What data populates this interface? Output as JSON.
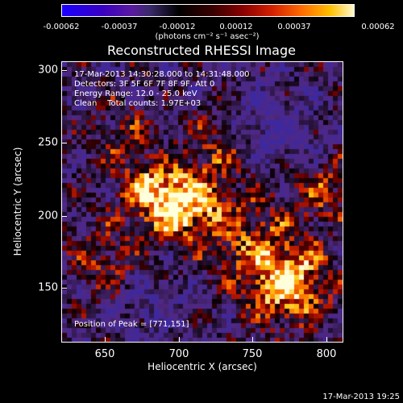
{
  "colorbar": {
    "labels": [
      "-0.00062",
      "-0.00037",
      "-0.00012",
      "0.00012",
      "0.00037",
      "0.00062"
    ],
    "unit": "(photons cm⁻² s⁻¹ asec⁻²)"
  },
  "title": "Reconstructed RHESSI Image",
  "overlay": {
    "time_range": "17-Mar-2013 14:30:28.000 to 14:31:48.000",
    "detectors": "Detectors: 3F 5F 6F 7F 8F 9F, Att 0",
    "energy": "Energy Range: 12.0 - 25.0 keV",
    "clean": "Clean    Total counts: 1.97E+03",
    "peak": "Position of Peak = [771,151]"
  },
  "axes": {
    "xlabel": "Heliocentric X (arcsec)",
    "ylabel": "Heliocentric Y (arcsec)",
    "xticks": [
      "650",
      "700",
      "750",
      "800"
    ],
    "yticks": [
      "150",
      "200",
      "250",
      "300"
    ]
  },
  "footer": {
    "timestamp": "17-Mar-2013 19:25"
  }
}
